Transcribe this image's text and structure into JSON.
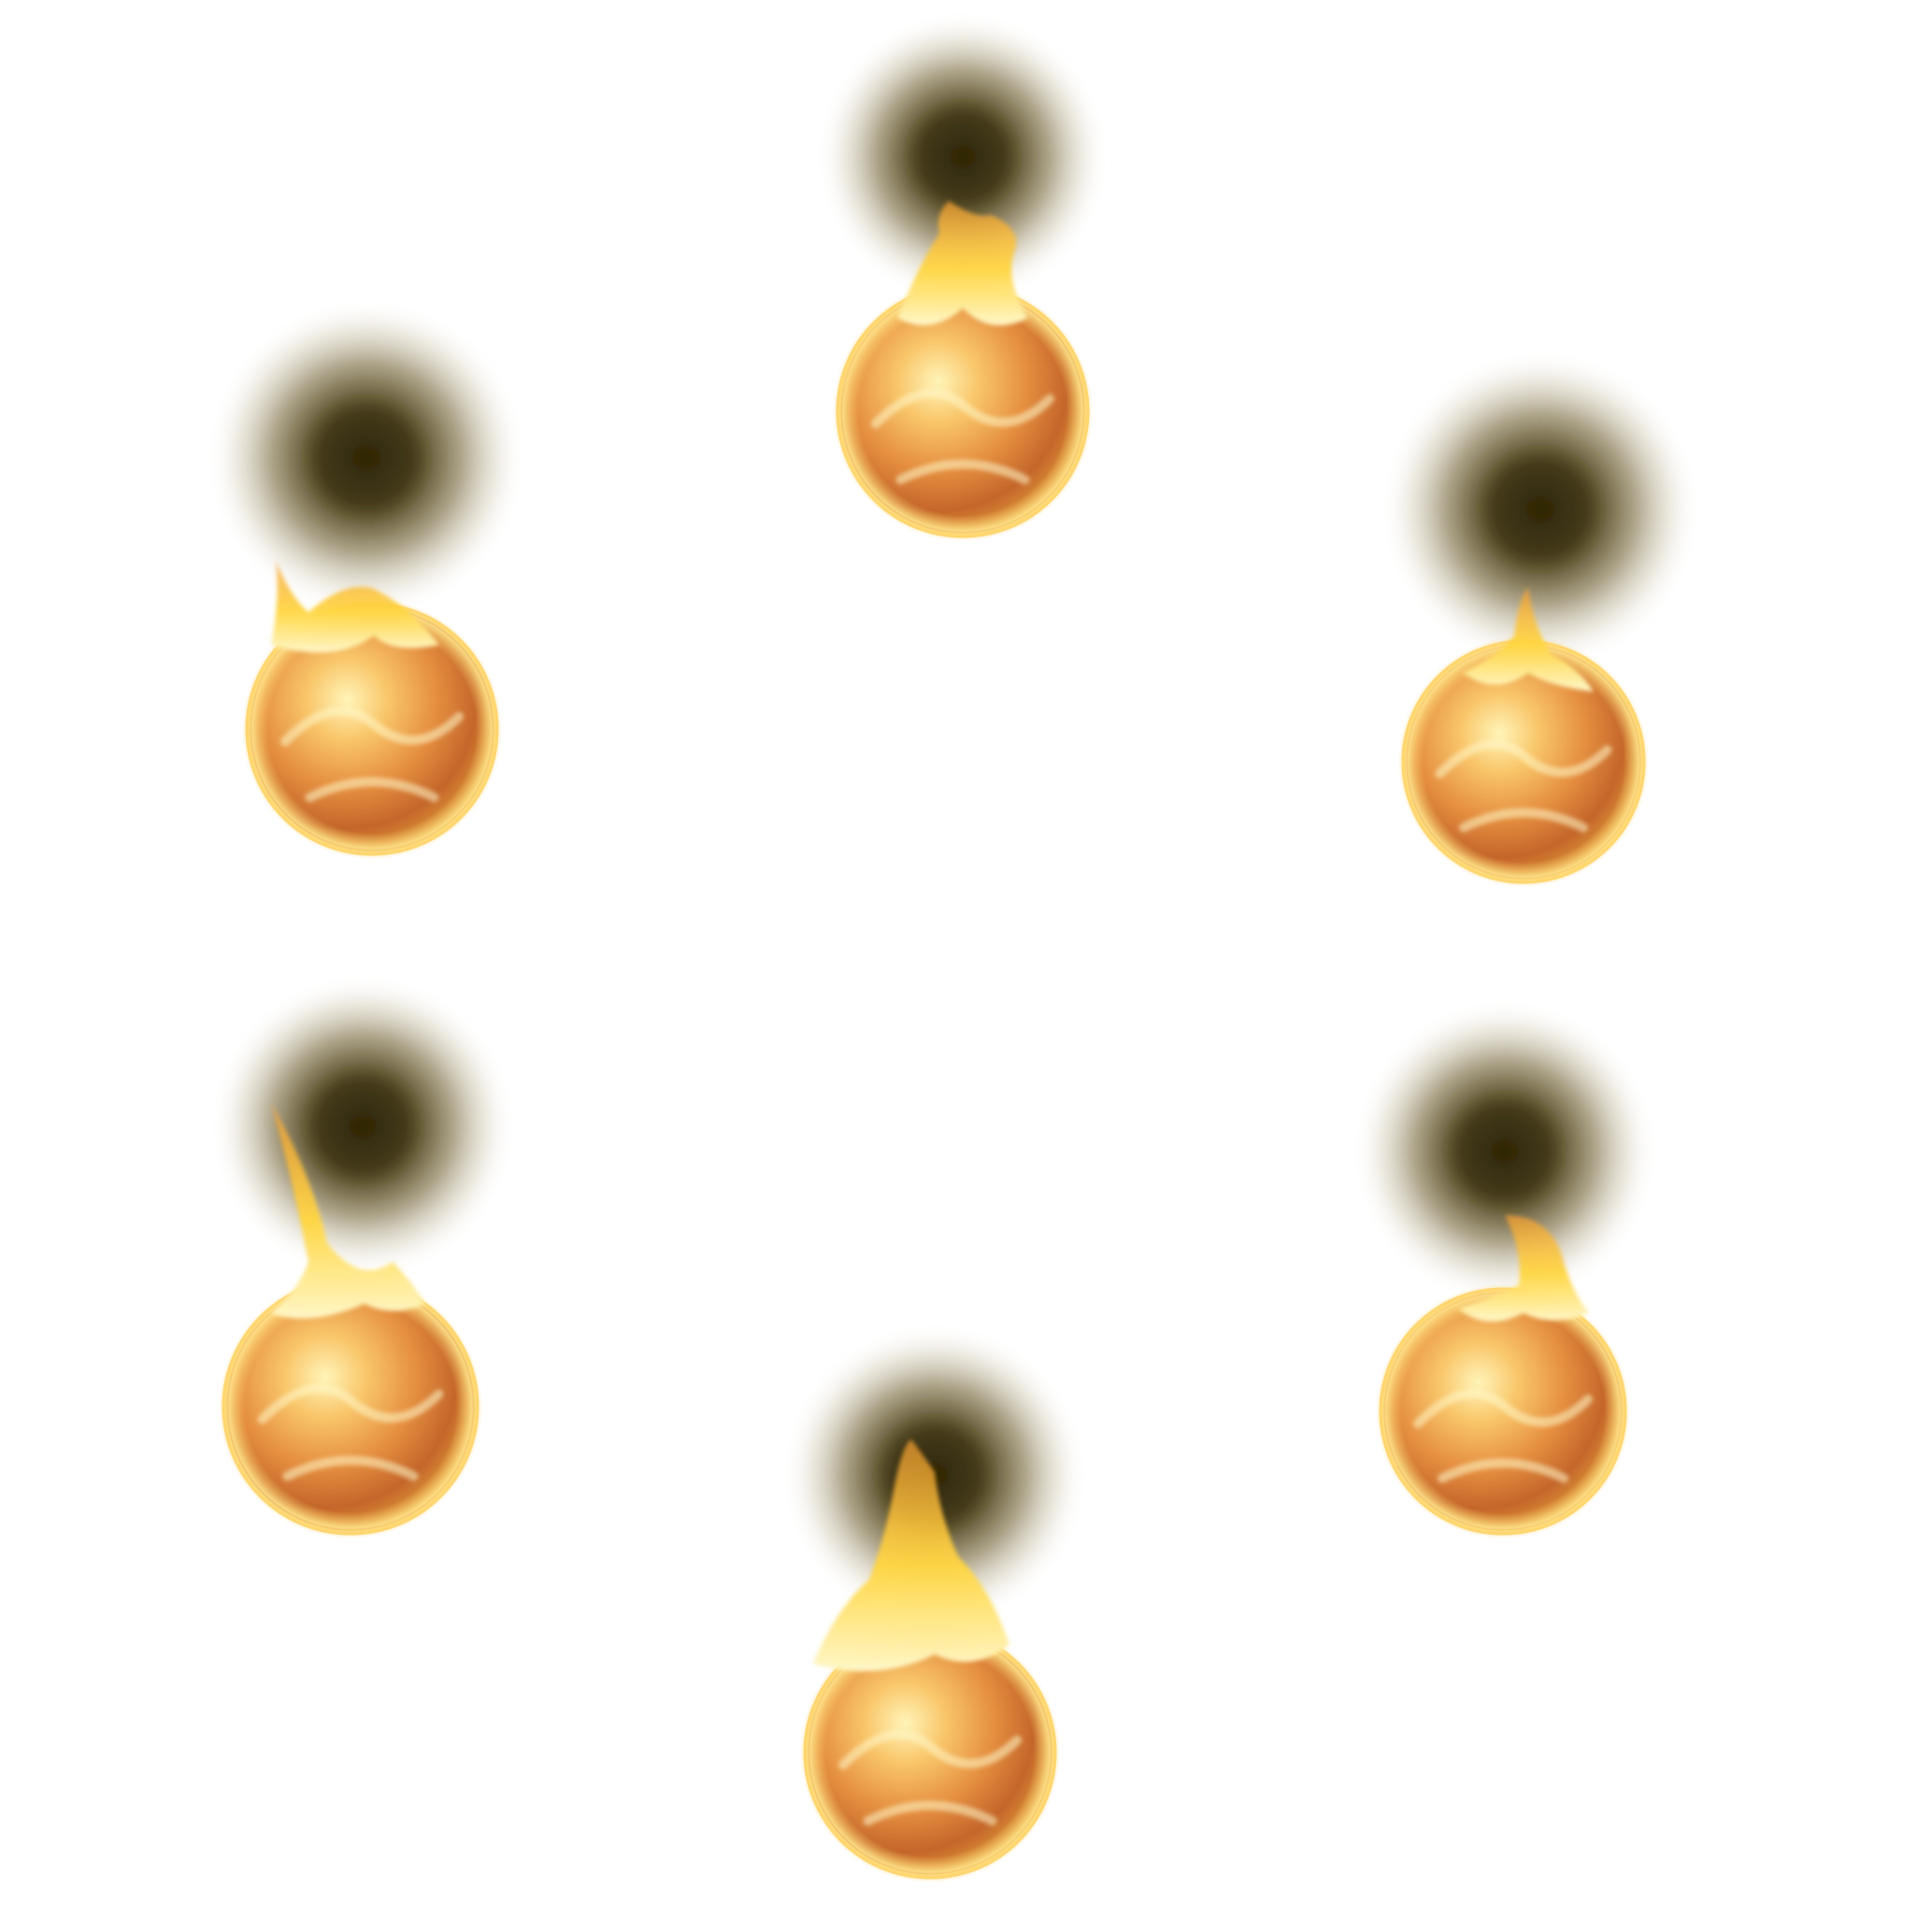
{
  "scene": {
    "background": "#ffffff",
    "fireball_count": 6,
    "fireballs": [
      {
        "name": "top"
      },
      {
        "name": "upper-left"
      },
      {
        "name": "upper-right"
      },
      {
        "name": "lower-left"
      },
      {
        "name": "lower-right"
      },
      {
        "name": "bottom"
      }
    ],
    "colors": {
      "core": "#fff4b8",
      "mid": "#f7a840",
      "deep": "#c4662a",
      "rim": "#ffd36a",
      "flame": "#ffd640",
      "flame_hot": "#fff7c8",
      "smoke": "#2e2606"
    },
    "icons": {
      "fireball": "fireball-icon",
      "smoke": "smoke-shadow-icon",
      "flame": "flame-icon"
    }
  }
}
